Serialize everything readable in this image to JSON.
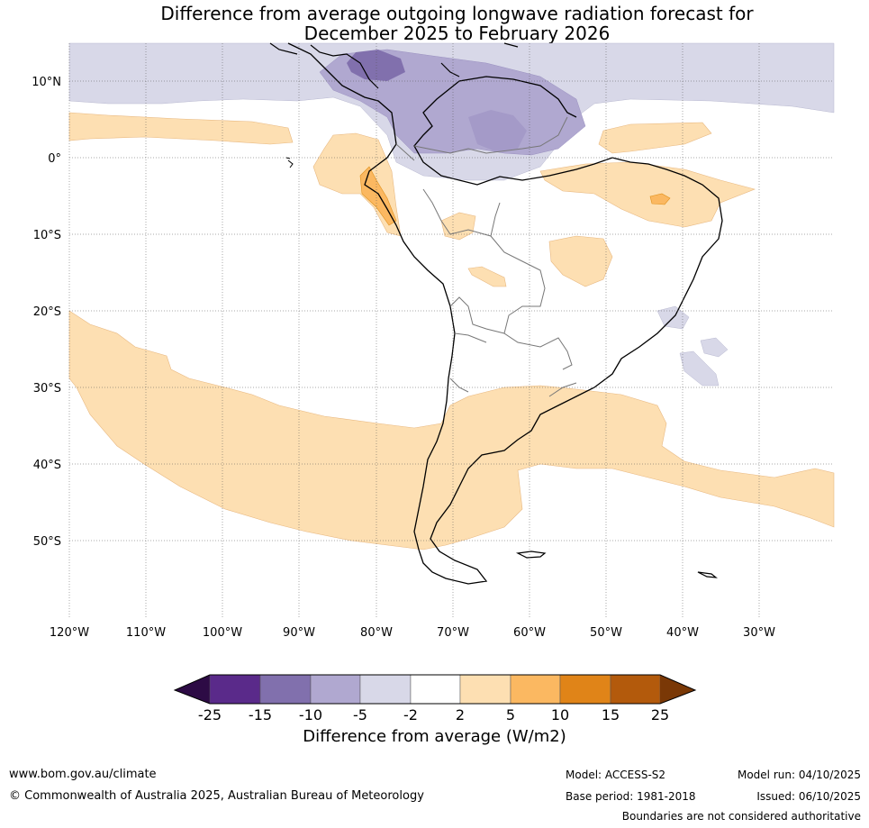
{
  "title": {
    "line1": "Difference from average outgoing longwave radiation forecast for",
    "line2": "December 2025 to February 2026"
  },
  "map": {
    "lat_labels": [
      "10°N",
      "0°",
      "10°S",
      "20°S",
      "30°S",
      "40°S",
      "50°S"
    ],
    "lon_labels": [
      "120°W",
      "110°W",
      "100°W",
      "90°W",
      "80°W",
      "70°W",
      "60°W",
      "50°W",
      "40°W",
      "30°W"
    ]
  },
  "colorbar": {
    "ticks": [
      "-25",
      "-15",
      "-10",
      "-5",
      "-2",
      "2",
      "5",
      "10",
      "15",
      "25"
    ],
    "colors": {
      "lt_-25": "#2d0b45",
      "-25_-15": "#5a2a8a",
      "-15_-10": "#8170ad",
      "-10_-5": "#b0a8d0",
      "-5_-2": "#d8d8e8",
      "-2_2": "#ffffff",
      "2_5": "#fddfb2",
      "5_10": "#fbb861",
      "10_15": "#e08418",
      "15_25": "#b35a0c",
      "gt_25": "#7a3806"
    },
    "label": "Difference from average (W/m2)"
  },
  "footer": {
    "website": "www.bom.gov.au/climate",
    "copyright": "© Commonwealth of Australia 2025, Australian Bureau of Meteorology",
    "model": "Model: ACCESS-S2",
    "base_period": "Base period: 1981-2018",
    "model_run": "Model run: 04/10/2025",
    "issued": "Issued: 06/10/2025",
    "disclaimer": "Boundaries are not considered authoritative"
  }
}
